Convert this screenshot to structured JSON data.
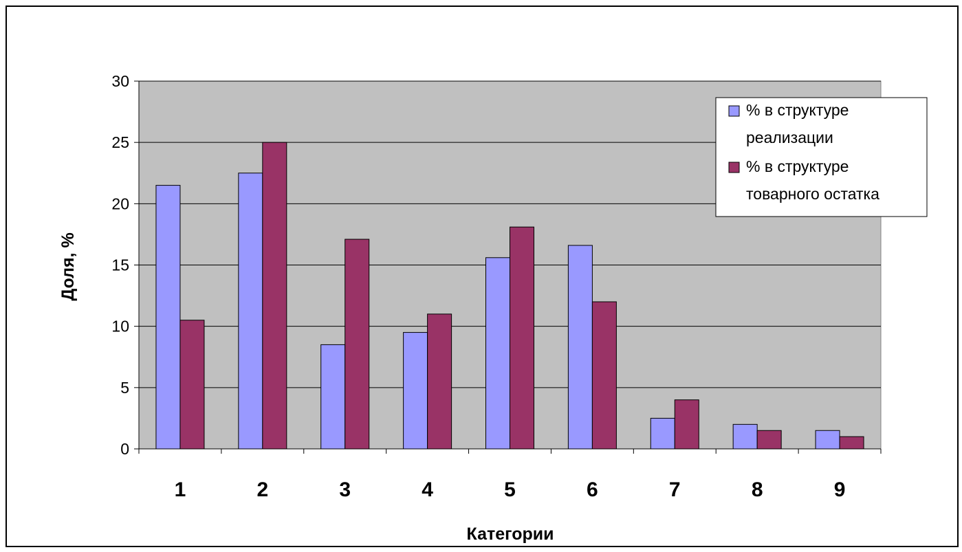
{
  "chart_data": {
    "type": "bar",
    "title": "",
    "xlabel": "Категории",
    "ylabel": "Доля, %",
    "ylim": [
      0,
      30
    ],
    "yticks": [
      0,
      5,
      10,
      15,
      20,
      25,
      30
    ],
    "categories": [
      "1",
      "2",
      "3",
      "4",
      "5",
      "6",
      "7",
      "8",
      "9"
    ],
    "series": [
      {
        "name": "% в структуре реализации",
        "name_lines": [
          "% в структуре",
          "реализации"
        ],
        "color": "#9999ff",
        "values": [
          21.5,
          22.5,
          8.5,
          9.5,
          15.6,
          16.6,
          2.5,
          2.0,
          1.5
        ]
      },
      {
        "name": "% в структуре товарного остатка",
        "name_lines": [
          "% в структуре",
          "товарного остатка"
        ],
        "color": "#993366",
        "values": [
          10.5,
          25.0,
          17.1,
          11.0,
          18.1,
          12.0,
          4.0,
          1.5,
          1.0
        ]
      }
    ],
    "grid": true,
    "plot_background": "#c0c0c0",
    "legend_position": "top-right"
  }
}
